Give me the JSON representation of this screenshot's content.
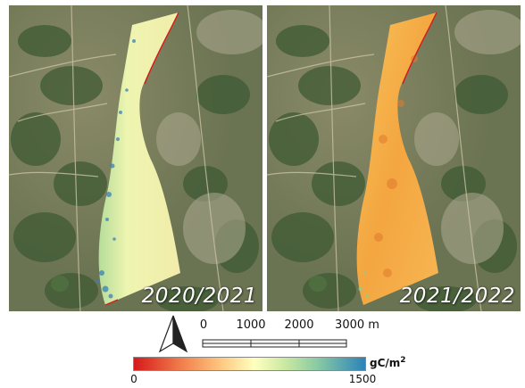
{
  "panels": [
    {
      "label": "2020/2021",
      "layer": "gC/m2 raster 2020/2021"
    },
    {
      "label": "2021/2022",
      "layer": "gC/m2 raster 2021/2022"
    }
  ],
  "colors": {
    "scale_low": "#d7191c",
    "scale_mid": "#ffffbf",
    "scale_high": "#2b83ba",
    "fill_2020": "#e4f2a6",
    "fill_2021": "#f6a94a",
    "imagery_base": "#6f7657"
  },
  "scale_bar": {
    "ticks": [
      "0",
      "1000",
      "2000",
      "3000 m"
    ]
  },
  "legend": {
    "min": "0",
    "max": "1500",
    "unit_base": "gC/m",
    "unit_exp": "2"
  },
  "north_arrow": {
    "icon": "north-arrow-icon"
  }
}
